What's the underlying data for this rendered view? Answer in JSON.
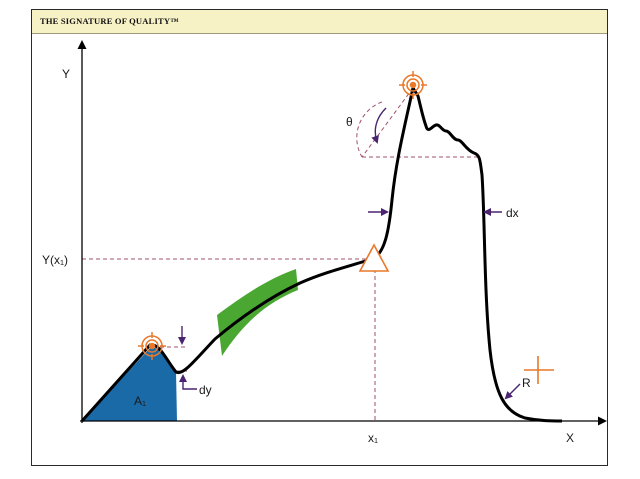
{
  "header": {
    "title": "THE SIGNATURE OF QUALITY™"
  },
  "labels": {
    "y_axis": "Y",
    "x_axis": "X",
    "y_at_x1": "Y(x₁)",
    "x1": "x₁",
    "area": "A₁",
    "dy": "dy",
    "dx": "dx",
    "theta": "θ",
    "radius": "R"
  },
  "colors": {
    "curve": "#000000",
    "area_fill": "#1a6aa8",
    "band_fill": "#4aa832",
    "marker": "#e8782a",
    "arrow": "#4a2470",
    "dashed": "#a0506a"
  },
  "icons": [
    "target-marker-icon",
    "triangle-marker-icon",
    "crosshair-icon"
  ]
}
